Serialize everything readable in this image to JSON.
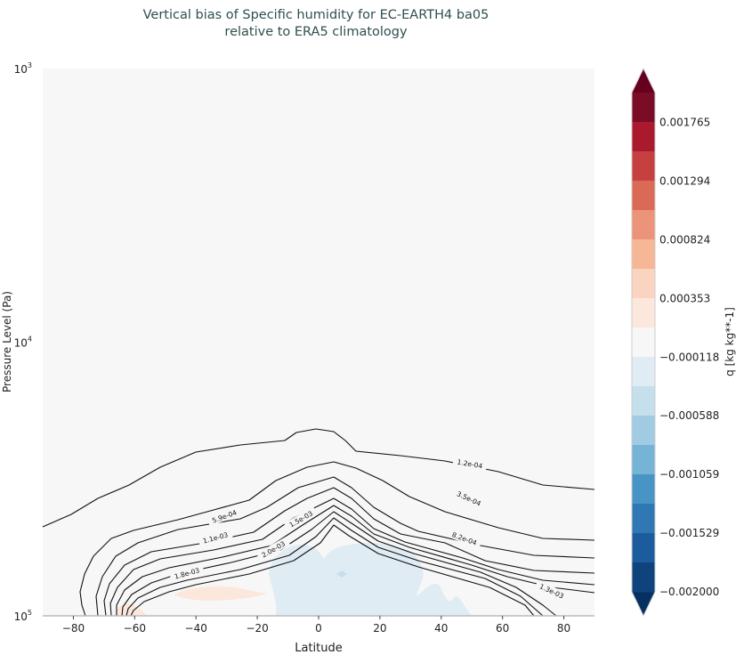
{
  "chart_data": {
    "type": "contour",
    "title": "Vertical bias of Specific humidity for EC-EARTH4 ba05 relative to ERA5 climatology",
    "title_lines": [
      "Vertical bias of Specific humidity for EC-EARTH4 ba05",
      "relative to ERA5 climatology"
    ],
    "xlabel": "Latitude",
    "ylabel": "Pressure Level (Pa)",
    "xlim": [
      -90,
      90
    ],
    "ylim": [
      100000,
      1000
    ],
    "yscale": "log",
    "xticks": [
      "-80",
      "-60",
      "-40",
      "-20",
      "0",
      "20",
      "40",
      "60",
      "80"
    ],
    "xtick_values": [
      -80,
      -60,
      -40,
      -20,
      0,
      20,
      40,
      60,
      80
    ],
    "yticks": [
      {
        "base": "10",
        "exp": "3",
        "value": 1000
      },
      {
        "base": "10",
        "exp": "4",
        "value": 10000
      },
      {
        "base": "10",
        "exp": "5",
        "value": 100000
      }
    ],
    "colorbar": {
      "label": "q [kg kg**-1]",
      "cmap": "RdBu_r",
      "extend": "both",
      "range": [
        -0.002,
        0.002004
      ],
      "ticks": [
        "0.001765",
        "0.001294",
        "0.000824",
        "0.000353",
        "−0.000118",
        "−0.000588",
        "−0.001059",
        "−0.001529",
        "−0.002000"
      ],
      "tick_values": [
        0.001765,
        0.001294,
        0.000824,
        0.000353,
        -0.000118,
        -0.000588,
        -0.001059,
        -0.001529,
        -0.002
      ],
      "colors_top_to_bottom": [
        "#7a0c25",
        "#a91a2e",
        "#c6403f",
        "#da6a55",
        "#ec9479",
        "#f6b797",
        "#fad4c0",
        "#fbe7dc",
        "#f7f7f7",
        "#e0ecf3",
        "#c5dfec",
        "#a1cbe2",
        "#76b4d5",
        "#4895c5",
        "#2f78b4",
        "#1c5c9e",
        "#0f437b"
      ],
      "extend_top_color": "#67001f",
      "extend_bottom_color": "#053061"
    },
    "contour_levels": [
      0.00012,
      0.00035,
      0.00059,
      0.00082,
      0.00106,
      0.00129,
      0.00153,
      0.00176,
      0.002
    ],
    "contour_labels": [
      "1.2e-04",
      "3.5e-04",
      "5.9e-04",
      "8.2e-04",
      "1.1e-03",
      "1.3e-03",
      "1.5e-03",
      "1.8e-03",
      "2.0e-03"
    ],
    "background_color": "#f7f7f7",
    "grid": false
  }
}
